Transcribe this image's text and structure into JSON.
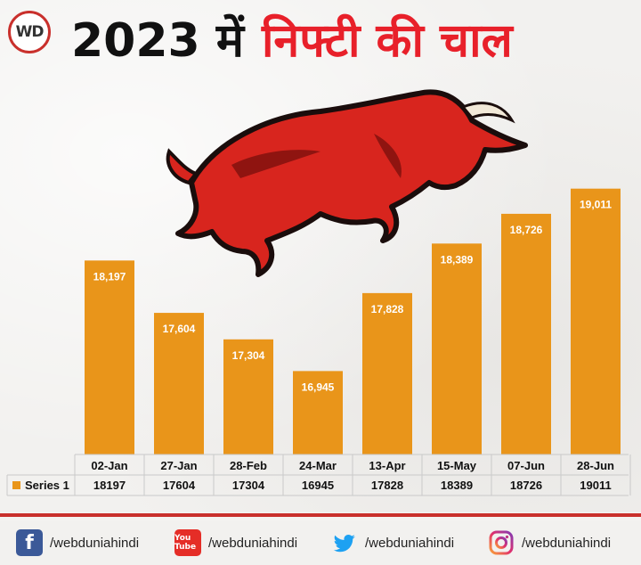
{
  "header": {
    "logo_text": "WD",
    "title_year": "2023 में",
    "title_rest": "निफ्टी की चाल"
  },
  "chart_data": {
    "type": "bar",
    "title": "2023 में निफ्टी की चाल",
    "categories": [
      "02-Jan",
      "27-Jan",
      "28-Feb",
      "24-Mar",
      "13-Apr",
      "15-May",
      "07-Jun",
      "28-Jun"
    ],
    "series": [
      {
        "name": "Series 1",
        "values": [
          18197,
          17604,
          17304,
          16945,
          17828,
          18389,
          18726,
          19011
        ],
        "data_labels": [
          "18,197",
          "17,604",
          "17,304",
          "16,945",
          "17,828",
          "18,389",
          "18,726",
          "19,011"
        ],
        "table_values": [
          "18197",
          "17604",
          "17304",
          "16945",
          "17828",
          "18389",
          "18726",
          "19011"
        ]
      }
    ],
    "ylim": [
      16000,
      19250
    ],
    "bar_color": "#e9951a",
    "legend": "data-table",
    "grid": false
  },
  "footer": {
    "accent": "#c9302c",
    "socials": [
      {
        "icon": "facebook-icon",
        "glyph": "f",
        "handle": "/webduniahindi"
      },
      {
        "icon": "youtube-icon",
        "glyph": "You Tube",
        "handle": "/webduniahindi"
      },
      {
        "icon": "twitter-icon",
        "glyph": "",
        "handle": "/webduniahindi"
      },
      {
        "icon": "instagram-icon",
        "glyph": "",
        "handle": "/webduniahindi"
      }
    ]
  }
}
